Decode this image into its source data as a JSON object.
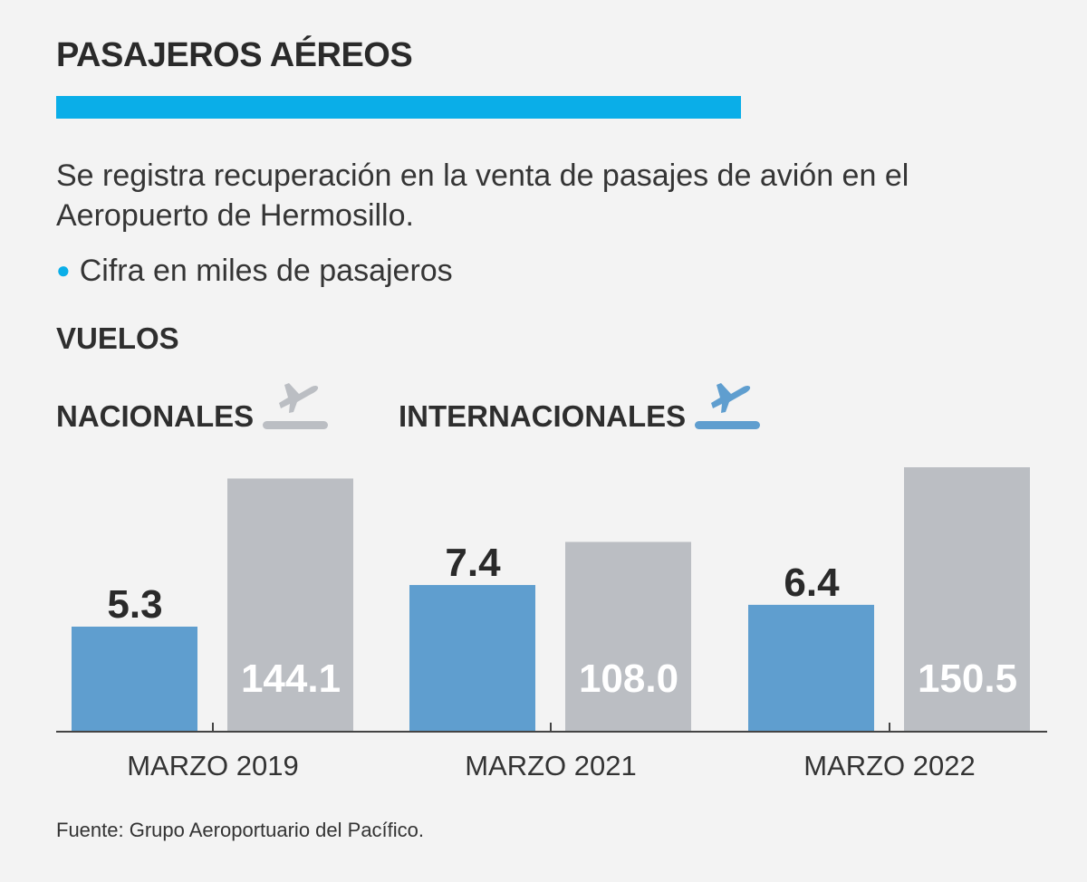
{
  "header": {
    "title": "PASAJEROS AÉREOS",
    "subtitle": "Se registra recuperación en la venta de pasajes de avión en el Aeropuerto de Hermosillo.",
    "note": "Cifra en miles de pasajeros"
  },
  "legend": {
    "heading": "VUELOS",
    "items": [
      {
        "label": "NACIONALES",
        "icon": "airplane-takeoff-icon",
        "color": "#bbbec3"
      },
      {
        "label": "INTERNACIONALES",
        "icon": "airplane-takeoff-icon",
        "color": "#5f9ecf"
      }
    ]
  },
  "colors": {
    "accent": "#0aaee8",
    "internacionales": "#5f9ecf",
    "nacionales": "#bbbec3"
  },
  "chart_data": {
    "type": "bar",
    "categories": [
      "MARZO 2019",
      "MARZO 2021",
      "MARZO 2022"
    ],
    "series": [
      {
        "name": "INTERNACIONALES",
        "values": [
          5.3,
          7.4,
          6.4
        ],
        "labels": [
          "5.3",
          "7.4",
          "6.4"
        ],
        "color": "#5f9ecf",
        "label_position": "above"
      },
      {
        "name": "NACIONALES",
        "values": [
          144.1,
          108.0,
          150.5
        ],
        "labels": [
          "144.1",
          "108.0",
          "150.5"
        ],
        "color": "#bbbec3",
        "label_position": "inside"
      }
    ],
    "title": "PASAJEROS AÉREOS",
    "unit": "miles de pasajeros",
    "grid": false,
    "legend_position": "top-left"
  },
  "footer": {
    "source": "Fuente: Grupo Aeroportuario del Pacífico."
  }
}
